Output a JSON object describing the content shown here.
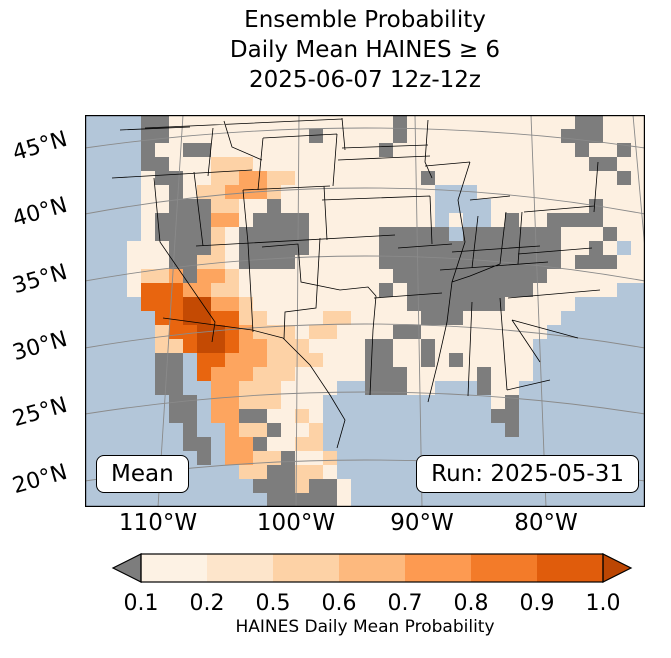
{
  "title": {
    "line1": "Ensemble Probability",
    "line2": "Daily Mean HAINES ≥ 6",
    "line3": "2025-06-07 12z-12z"
  },
  "map": {
    "mean_box_label": "Mean",
    "run_box_label": "Run: 2025-05-31",
    "y_tick_labels": [
      "45°N",
      "40°N",
      "35°N",
      "30°N",
      "25°N",
      "20°N"
    ],
    "x_tick_labels": [
      "110°W",
      "100°W",
      "90°W",
      "80°W"
    ],
    "ocean_color": "#b3c6d9",
    "border_color": "#000000",
    "gridline_color": "#8a8a8a"
  },
  "chart_data": {
    "type": "heatmap",
    "title": "Ensemble Probability Daily Mean HAINES ≥ 6 2025-06-07 12z-12z",
    "colorbar_label": "HAINES Daily Mean Probability",
    "colorbar_ticks": [
      "0.1",
      "0.2",
      "0.5",
      "0.6",
      "0.7",
      "0.8",
      "0.9",
      "1.0"
    ],
    "colorbar_colors": [
      "#fdf2e4",
      "#fde5cb",
      "#fdd2a6",
      "#fdb97e",
      "#fd9a51",
      "#f37b29",
      "#e05c0c"
    ],
    "under_arrow_color": "#7d7d7d",
    "over_arrow_color": "#bc4603",
    "grid": {
      "cols": 40,
      "rows": 28,
      "cell": 14,
      "water_key": "w",
      "palette": {
        ".": "#fdf0e1",
        "o": "#fdd2a6",
        "O": "#fda55f",
        "D": "#e8650f",
        "R": "#c44a03",
        "g": "#7d7d7d"
      },
      "rows_data": [
        "wwwwgg................g............gg...",
        "wwwwgg..........g.....g...........ggg...",
        "wwwwg..gg............g.............g..g.",
        "wwwwgg...ooo........................gg..",
        "wwww.gg..ooOOoo.........g.............g.",
        "wwww..g.ooOOOo...........www............",
        "wwww..gggoo..g...........wwww.......g...",
        "wwww.ggggOO.gggg.........w.ww.g..gggg...",
        "wwww.ggggo.ggggg.....gggggwggggggg...g..",
        "www...gggo.ggggg.....ggggggggggggg..g.w.",
        "www...ggoo.gggg......ggggggggggggg.ggg..",
        "www.ooOgOOo...........ggggggggggg.......",
        "www.DDDOOoo..........g.ggggggggg......ww",
        "wwwwDDDRROOo...........ggggggg.....wwwww",
        "wwwwwDDRRDDoo....oo.....ggg.......wwwwww",
        "wwwwwoDDRRDOooo.oo....gg.........wwwwwww",
        "wwwwwooDRRDOOooo....gg..g.......wwwwwwww",
        "wwwwwggwDDOOOoooo...gg..g.g.....wwwwwwww",
        "wwwwwggwDOOOooo.....ggg.....g...wwwwwwww",
        "wwwwwggwwOOooo....wwggg..wwwg..wwwwwwwww",
        "wwwwwwggwOOooo...wwwwwwwwwwww.gwwwwwwwww",
        "wwwwwwggwOOgg..o.wwwwwwwwwwwwggwwwwwwwww",
        "wwwwwwwgwwOoog..owwwwwwwwwwwwwgwwwwwwwww",
        "wwwwwwwggwOOg..oowwwwwwwwwwwwwwwwwwwwwww",
        "wwwwwwwwgwOOoog..owwwwwwwwwwwwwwwwwwwwww",
        "wwwwwwwwwwwooggoo.wwwwwwwwwwwwwwwwwwwwww",
        "wwwwwwwwwwwwgggogg.wwwwwwwwwwwwwwwwwwwww",
        "wwwwwwwwwwwwwggggg.wwwwwwwwwwwwwwwwwwwww"
      ]
    }
  }
}
